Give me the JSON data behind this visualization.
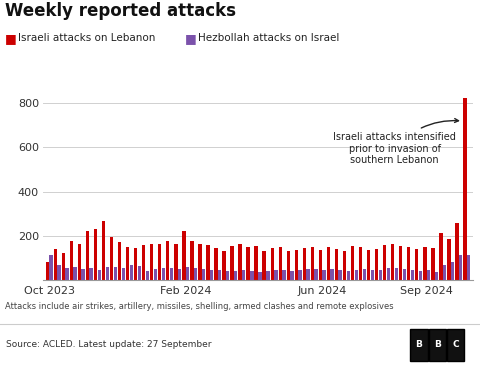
{
  "title": "Weekly reported attacks",
  "legend_labels": [
    "Israeli attacks on Lebanon",
    "Hezbollah attacks on Israel"
  ],
  "bar_color_israel": "#cc0000",
  "bar_color_hezbollah": "#7b52ab",
  "background_color": "#ffffff",
  "footnote": "Attacks include air strikes, artillery, missiles, shelling, armed clashes and remote explosives",
  "source": "Source: ACLED. Latest update: 27 September",
  "ylim": [
    0,
    870
  ],
  "yticks": [
    200,
    400,
    600,
    800
  ],
  "annotation_text": "Israeli attacks intensified\nprior to invasion of\nsouthern Lebanon",
  "israeli_attacks": [
    80,
    140,
    120,
    175,
    165,
    220,
    230,
    265,
    195,
    170,
    150,
    145,
    160,
    165,
    165,
    175,
    165,
    220,
    175,
    165,
    160,
    145,
    130,
    155,
    165,
    150,
    155,
    130,
    145,
    150,
    130,
    135,
    145,
    150,
    135,
    150,
    140,
    130,
    155,
    150,
    135,
    140,
    160,
    165,
    155,
    150,
    140,
    150,
    145,
    215,
    185,
    260,
    823
  ],
  "hezbollah_attacks": [
    115,
    70,
    55,
    60,
    50,
    55,
    45,
    60,
    60,
    55,
    70,
    65,
    40,
    50,
    55,
    55,
    50,
    60,
    55,
    50,
    45,
    45,
    40,
    40,
    45,
    40,
    35,
    40,
    45,
    45,
    40,
    45,
    50,
    50,
    45,
    50,
    45,
    40,
    45,
    50,
    45,
    45,
    55,
    55,
    50,
    45,
    40,
    45,
    35,
    70,
    80,
    115,
    112
  ],
  "tick_week_indices": [
    0,
    17,
    34,
    47
  ],
  "tick_labels": [
    "Oct 2023",
    "Feb 2024",
    "Jun 2024",
    "Sep 2024"
  ],
  "grid_color": "#d0d0d0",
  "spine_color": "#999999"
}
